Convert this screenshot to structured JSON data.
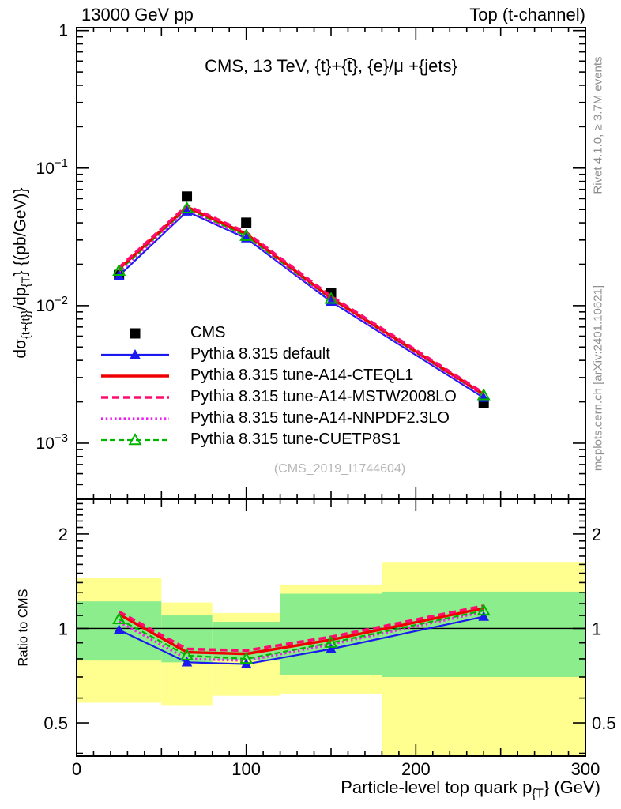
{
  "header": {
    "left": "13000 GeV pp",
    "right": "Top (t-channel)"
  },
  "side_notes": {
    "top_right": "Rivet 4.1.0, ≥ 3.7M events",
    "bottom_right": "mcplots.cern.ch [arXiv:2401.10621]",
    "color": "#8f8f8f"
  },
  "watermark": {
    "text": "(CMS_2019_I1744604)",
    "color": "#b5b5b5"
  },
  "chart_data": {
    "type": "line",
    "title": "CMS, 13 TeV, {t}+{t̄}, {e}/μ +{jets}",
    "xlabel": {
      "pre": "Particle-level top quark p",
      "sub": "{T",
      "post": "} (GeV)"
    },
    "ylabel_main": {
      "pre": "dσ",
      "sub1": "{t+{t̄}}",
      "mid": "/dp",
      "sub2": "{T",
      "post": "}  {(pb/GeV)}"
    },
    "ylabel_ratio": "Ratio to CMS",
    "x_range": [
      0,
      300
    ],
    "y_range_main": [
      0.000396,
      1.05
    ],
    "y_scale": "log",
    "ratio_range": [
      0.392,
      2.58
    ],
    "ratio_scale": "log",
    "grid": false,
    "legend_position": "upper-left-inside",
    "x_ticks": [
      {
        "v": 0,
        "label": "0"
      },
      {
        "v": 100,
        "label": "100"
      },
      {
        "v": 200,
        "label": "200"
      },
      {
        "v": 300,
        "label": "300"
      }
    ],
    "y_ticks_main": [
      {
        "v": 1,
        "label": "1"
      },
      {
        "v": 0.1,
        "base": "10",
        "exp": "−1"
      },
      {
        "v": 0.01,
        "base": "10",
        "exp": "−2"
      },
      {
        "v": 0.001,
        "base": "10",
        "exp": "−3"
      }
    ],
    "ratio_ticks": [
      {
        "v": 2,
        "label": "2"
      },
      {
        "v": 1,
        "label": "1"
      },
      {
        "v": 0.5,
        "label": "0.5"
      }
    ],
    "x": [
      25,
      65,
      100,
      150,
      240
    ],
    "bin_edges": [
      0,
      50,
      80,
      120,
      180,
      300
    ],
    "data_series": {
      "name": "CMS",
      "color": "#000000",
      "marker": "square",
      "line": "none",
      "dash": "",
      "width": 0,
      "values": [
        0.0167,
        0.0621,
        0.0401,
        0.0124,
        0.00196
      ]
    },
    "mc_series": [
      {
        "name": "Pythia 8.315 default",
        "color": "#1a1aef",
        "line": "solid",
        "dash": "",
        "width": 2.2,
        "marker": "triangle",
        "values": [
          0.0165,
          0.0484,
          0.0309,
          0.0107,
          0.00214
        ],
        "ratio": [
          0.99,
          0.78,
          0.77,
          0.86,
          1.09
        ]
      },
      {
        "name": "Pythia 8.315 tune-A14-CTEQL1",
        "color": "#ee0000",
        "line": "solid",
        "dash": "",
        "width": 3.4,
        "marker": "none",
        "values": [
          0.0185,
          0.0522,
          0.0333,
          0.0114,
          0.00227
        ],
        "ratio": [
          1.11,
          0.84,
          0.83,
          0.92,
          1.16
        ]
      },
      {
        "name": "Pythia 8.315 tune-A14-MSTW2008LO",
        "color": "#ff0a6e",
        "line": "dashed",
        "dash": "9 5",
        "width": 3.6,
        "marker": "none",
        "values": [
          0.0189,
          0.0534,
          0.0341,
          0.0117,
          0.00231
        ],
        "ratio": [
          1.13,
          0.86,
          0.85,
          0.94,
          1.18
        ]
      },
      {
        "name": "Pythia 8.315 tune-A14-NNPDF2.3LO",
        "color": "#f01ef0",
        "line": "dotted",
        "dash": "2.5 3.2",
        "width": 3.2,
        "marker": "none",
        "values": [
          0.0175,
          0.0497,
          0.0317,
          0.011,
          0.00221
        ],
        "ratio": [
          1.05,
          0.8,
          0.79,
          0.89,
          1.13
        ]
      },
      {
        "name": "Pythia 8.315 tune-CUETP8S1",
        "color": "#00b400",
        "line": "dashed",
        "dash": "7 4",
        "width": 2.2,
        "marker": "triangle-open",
        "values": [
          0.0179,
          0.0509,
          0.0321,
          0.0112,
          0.00223
        ],
        "ratio": [
          1.07,
          0.82,
          0.8,
          0.9,
          1.14
        ]
      }
    ],
    "bands": {
      "yellow_color": "#ffff8f",
      "green_color": "#8bed8b",
      "bins": [
        {
          "x": [
            0,
            50
          ],
          "yellow": [
            0.58,
            1.45
          ],
          "green": [
            0.79,
            1.22
          ]
        },
        {
          "x": [
            50,
            80
          ],
          "yellow": [
            0.57,
            1.21
          ],
          "green": [
            0.78,
            1.1
          ]
        },
        {
          "x": [
            80,
            120
          ],
          "yellow": [
            0.61,
            1.12
          ],
          "green": [
            0.79,
            1.05
          ]
        },
        {
          "x": [
            120,
            180
          ],
          "yellow": [
            0.62,
            1.38
          ],
          "green": [
            0.71,
            1.29
          ]
        },
        {
          "x": [
            180,
            300
          ],
          "yellow": [
            0.39,
            1.63
          ],
          "green": [
            0.7,
            1.31
          ]
        }
      ]
    }
  }
}
